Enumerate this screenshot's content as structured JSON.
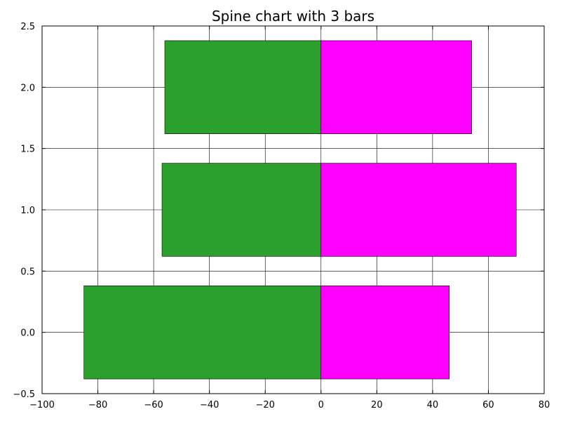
{
  "chart_data": {
    "type": "bar",
    "orientation": "horizontal",
    "title": "Spine chart with 3 bars",
    "xlabel": "",
    "ylabel": "",
    "xlim": [
      -100,
      80
    ],
    "ylim": [
      -0.5,
      2.5
    ],
    "xticks": [
      -100,
      -80,
      -60,
      -40,
      -20,
      0,
      20,
      40,
      60,
      80
    ],
    "xtick_labels": [
      "−100",
      "−80",
      "−60",
      "−40",
      "−20",
      "0",
      "20",
      "40",
      "60",
      "80"
    ],
    "yticks": [
      -0.5,
      0.0,
      0.5,
      1.0,
      1.5,
      2.0,
      2.5
    ],
    "ytick_labels": [
      "−0.5",
      "0.0",
      "0.5",
      "1.0",
      "1.5",
      "2.0",
      "2.5"
    ],
    "grid": true,
    "bar_height": 0.76,
    "categories": [
      0,
      1,
      2
    ],
    "series": [
      {
        "values": [
          -85,
          -57,
          -56
        ],
        "color": "#2ca02c"
      },
      {
        "values": [
          46,
          70,
          54
        ],
        "color": "#ff00ff"
      }
    ]
  }
}
